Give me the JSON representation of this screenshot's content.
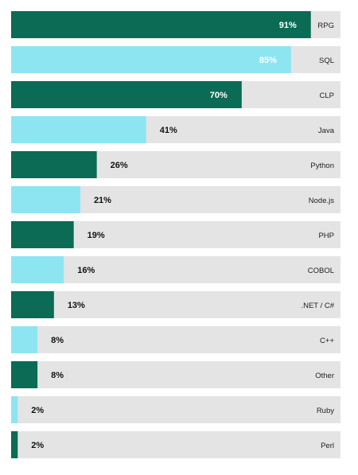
{
  "chart_data": {
    "type": "bar",
    "orientation": "horizontal",
    "title": "",
    "xlabel": "",
    "ylabel": "",
    "xlim": [
      0,
      100
    ],
    "value_suffix": "%",
    "grid": false,
    "legend": "none",
    "categories": [
      "RPG",
      "SQL",
      "CLP",
      "Java",
      "Python",
      "Node.js",
      "PHP",
      "COBOL",
      ".NET / C#",
      "C++",
      "Other",
      "Ruby",
      "Perl"
    ],
    "values": [
      91,
      85,
      70,
      41,
      26,
      21,
      19,
      16,
      13,
      8,
      8,
      2,
      2
    ],
    "value_labels": [
      "91%",
      "85%",
      "70%",
      "41%",
      "26%",
      "21%",
      "19%",
      "16%",
      "13%",
      "8%",
      "8%",
      "2%",
      "2%"
    ],
    "bar_colors": [
      "#0b6b55",
      "#8ee5f2",
      "#0b6b55",
      "#8ee5f2",
      "#0b6b55",
      "#8ee5f2",
      "#0b6b55",
      "#8ee5f2",
      "#0b6b55",
      "#8ee5f2",
      "#0b6b55",
      "#8ee5f2",
      "#0b6b55"
    ],
    "track_color": "#e4e4e4"
  }
}
